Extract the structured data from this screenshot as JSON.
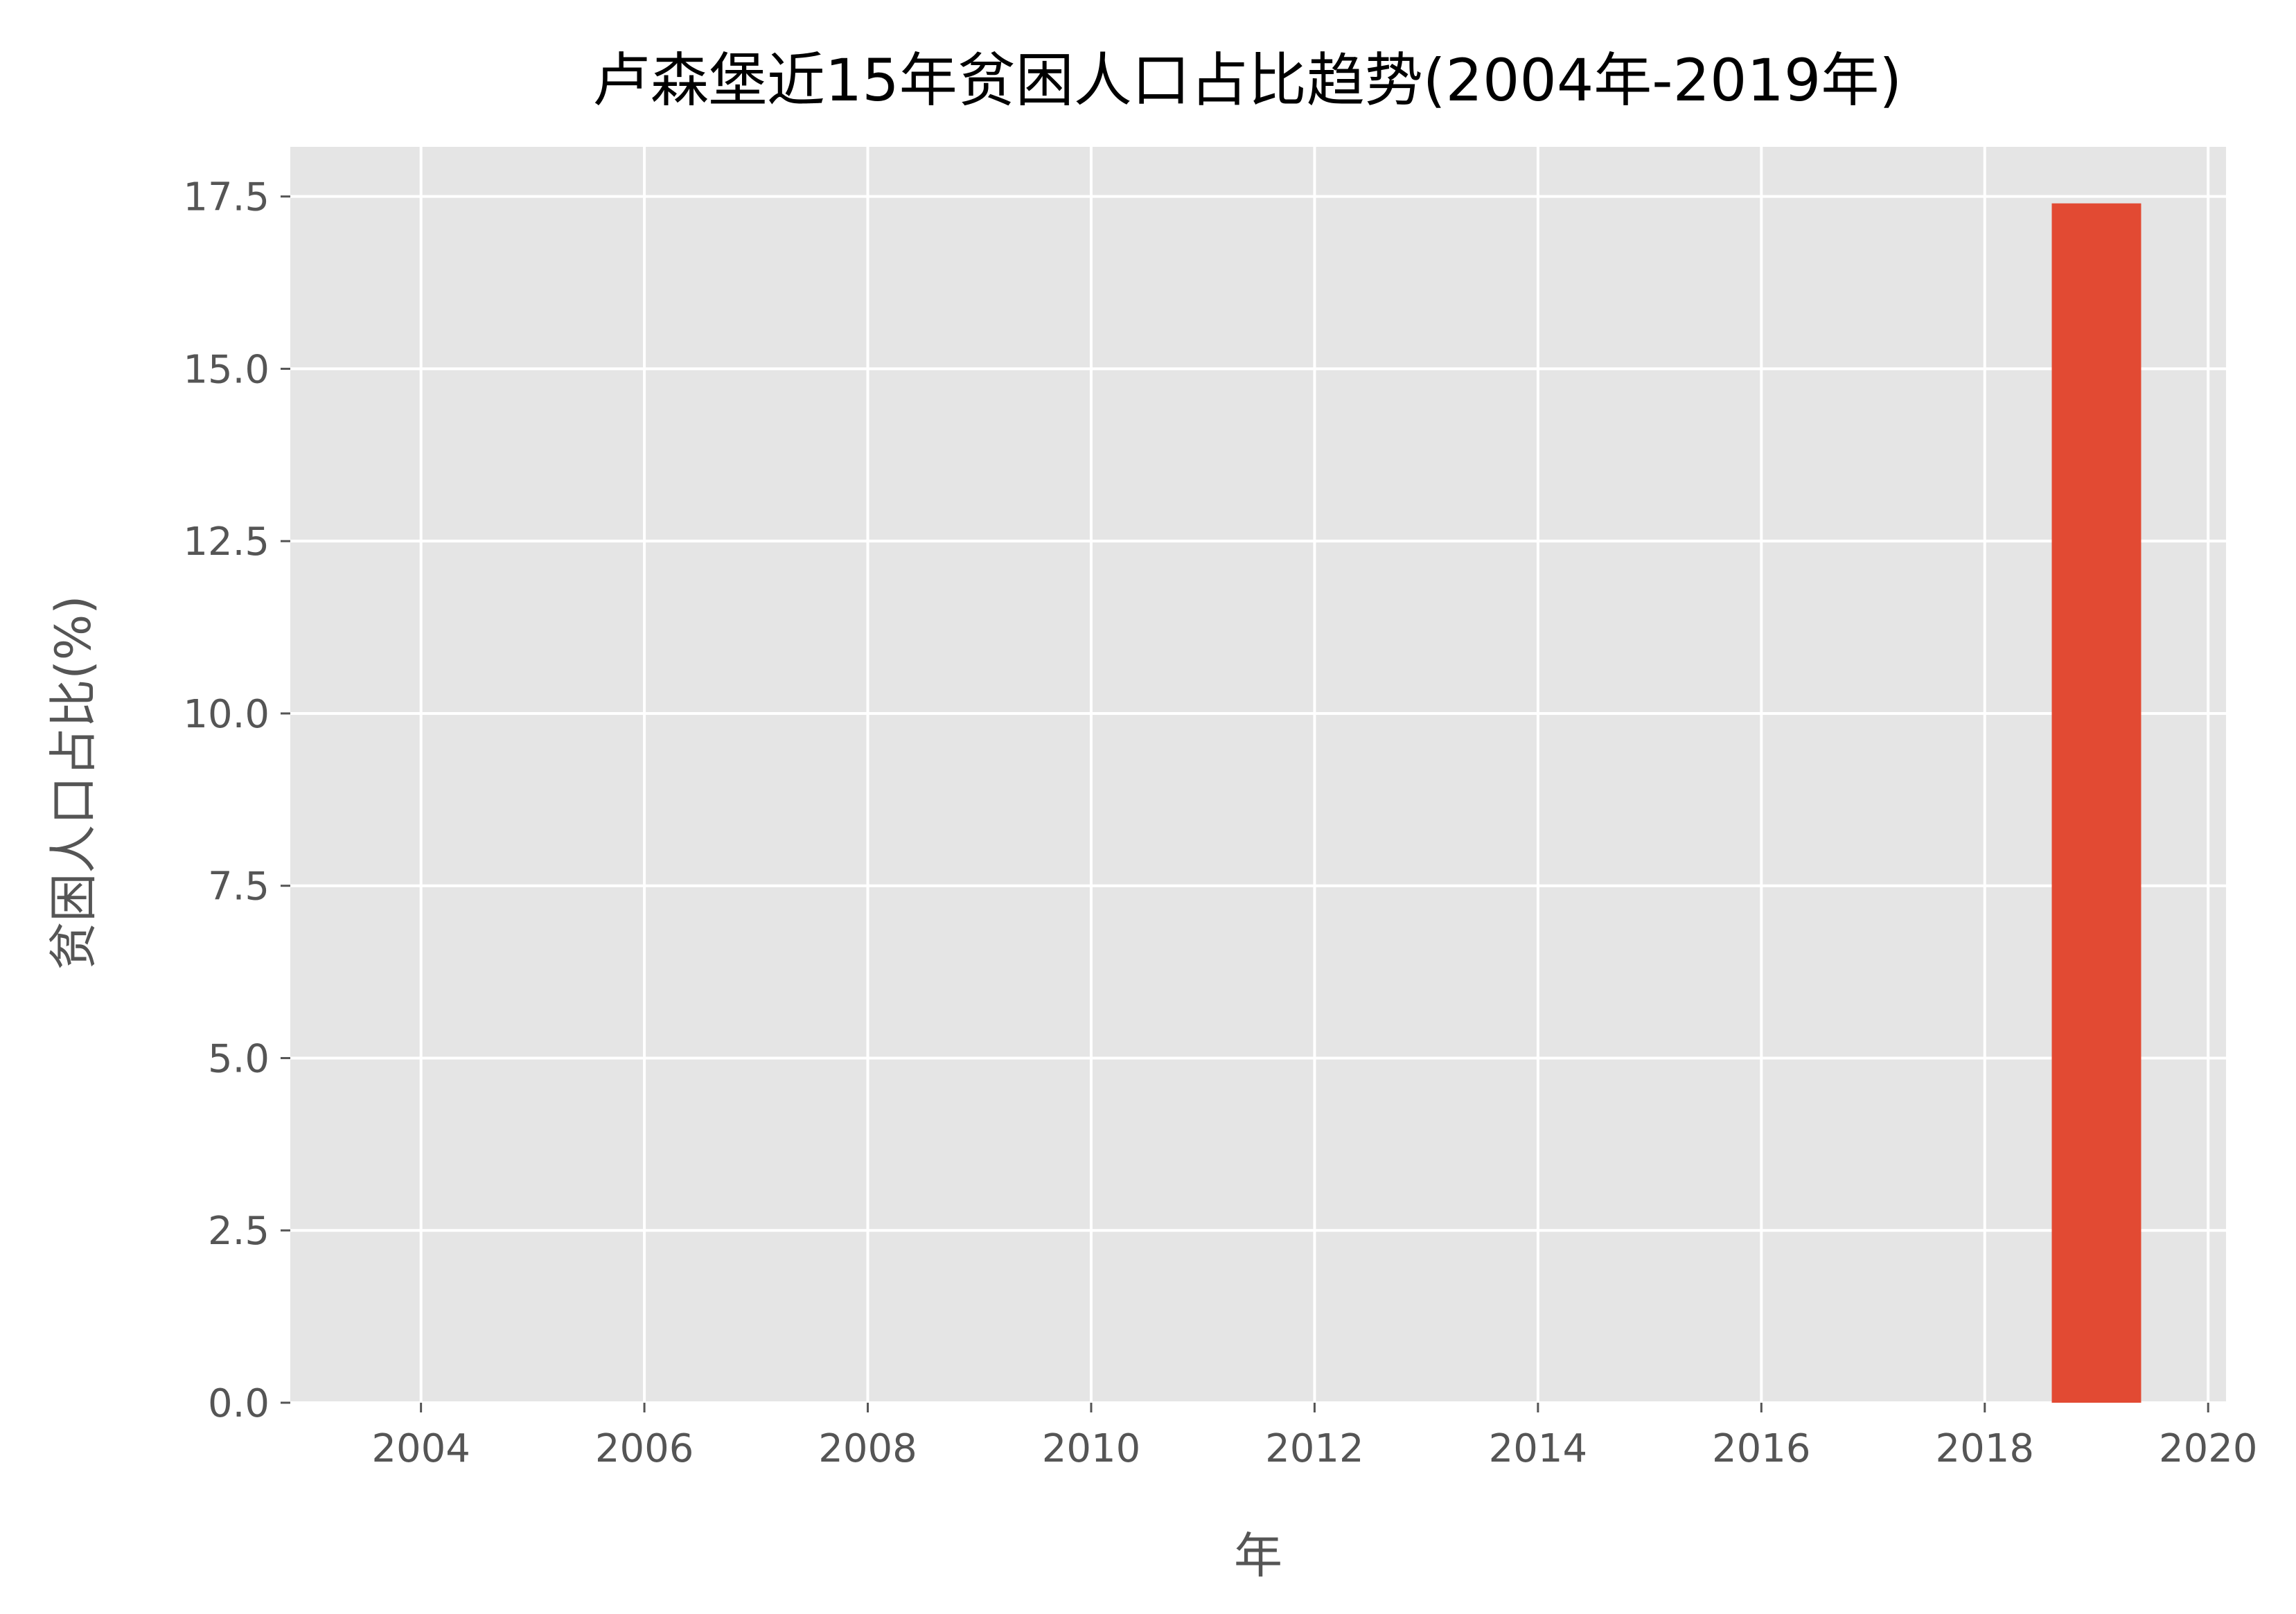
{
  "chart_data": {
    "type": "bar",
    "title": "卢森堡近15年贫困人口占比趋势(2004年-2019年)",
    "xlabel": "年",
    "ylabel": "贫困人口占比(%)",
    "x": [
      2019
    ],
    "values": [
      17.4
    ],
    "bar_width": 0.8,
    "xlim": [
      2002.83,
      2020.16
    ],
    "ylim": [
      0,
      18.22
    ],
    "xticks": [
      "2004",
      "2006",
      "2008",
      "2010",
      "2012",
      "2014",
      "2016",
      "2018",
      "2020"
    ],
    "yticks": [
      "0.0",
      "2.5",
      "5.0",
      "7.5",
      "10.0",
      "12.5",
      "15.0",
      "17.5"
    ],
    "grid": true,
    "colors": {
      "bar": "#E24A33",
      "background": "#E5E5E5",
      "grid": "#FFFFFF"
    }
  }
}
